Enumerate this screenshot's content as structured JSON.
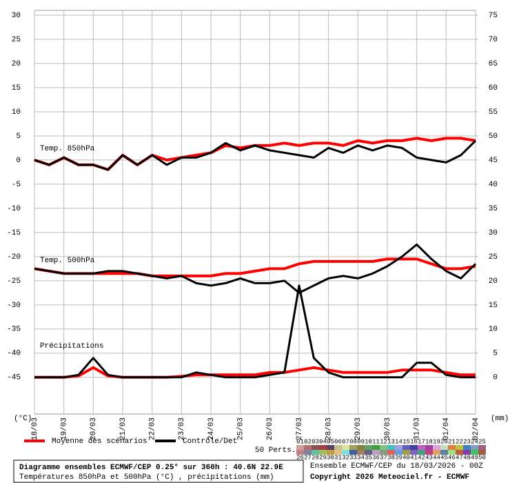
{
  "chart_data": {
    "type": "line",
    "categories": [
      "18/03",
      null,
      "19/03",
      null,
      "20/03",
      null,
      "21/03",
      null,
      "22/03",
      null,
      "23/03",
      null,
      "24/03",
      null,
      "25/03",
      null,
      "26/03",
      null,
      "27/03",
      null,
      "28/03",
      null,
      "29/03",
      null,
      "30/03",
      null,
      "31/03",
      null,
      "01/04",
      null,
      "02/04"
    ],
    "ylim": [
      -52.6,
      31
    ],
    "yticks": [
      30,
      25,
      20,
      15,
      10,
      5,
      0,
      -5,
      -10,
      -15,
      -20,
      -25,
      -30,
      -35,
      -40,
      -45
    ],
    "y2lim": [
      -7.6,
      76
    ],
    "y2ticks": [
      75,
      70,
      65,
      60,
      55,
      50,
      45,
      40,
      35,
      30,
      25,
      20,
      15,
      10,
      5,
      0
    ],
    "ylabel": "(°C)",
    "y2label": "(mm)",
    "grid": true,
    "legend": {
      "mean": {
        "name": "Moyenne des scénarios",
        "color": "#ff0000"
      },
      "control": {
        "name": "Contrôle/Det",
        "color": "#000000"
      }
    },
    "panels": [
      {
        "label": "Temp. 850hPa",
        "mean": [
          0,
          -1,
          0.5,
          -1,
          -1,
          -2,
          1,
          -1,
          1,
          0,
          0.5,
          1,
          1.5,
          3,
          2.5,
          3,
          3,
          3.5,
          3,
          3.5,
          3.5,
          3,
          4,
          3.5,
          4,
          4,
          4.5,
          4,
          4.5,
          4.5,
          4
        ],
        "control": [
          0,
          -1,
          0.5,
          -1,
          -1,
          -2,
          1,
          -1,
          1,
          -1,
          0.5,
          0.5,
          1.5,
          3.5,
          2,
          3,
          2,
          1.5,
          1,
          0.5,
          2.5,
          1.5,
          3,
          2,
          3,
          2.5,
          0.5,
          0,
          -0.5,
          1,
          4
        ]
      },
      {
        "label": "Temp. 500hPa",
        "mean": [
          -22.5,
          -23,
          -23.5,
          -23.5,
          -23.5,
          -23.5,
          -23.5,
          -23.5,
          -24,
          -24,
          -24,
          -24,
          -24,
          -23.5,
          -23.5,
          -23,
          -22.5,
          -22.5,
          -21.5,
          -21,
          -21,
          -21,
          -21,
          -21,
          -20.5,
          -20.5,
          -20.5,
          -21.5,
          -22.5,
          -22.5,
          -22
        ],
        "control": [
          -22.5,
          -23,
          -23.5,
          -23.5,
          -23.5,
          -23,
          -23,
          -23.5,
          -24,
          -24.5,
          -24,
          -25.5,
          -26,
          -25.5,
          -24.5,
          -25.5,
          -25.5,
          -25,
          -27.5,
          -26,
          -24.5,
          -24,
          -24.5,
          -23.5,
          -22,
          -20,
          -17.5,
          -20.5,
          -23,
          -24.5,
          -21.5
        ]
      },
      {
        "label": "Précipitations",
        "axis": "y2",
        "mean": [
          0,
          0,
          0,
          0.3,
          2,
          0.3,
          0,
          0,
          0,
          0,
          0.2,
          0.5,
          0.5,
          0.5,
          0.5,
          0.5,
          1,
          1,
          1.5,
          2,
          1.5,
          1,
          1,
          1,
          1,
          1.5,
          1.5,
          1.5,
          1,
          0.5,
          0.5
        ],
        "control": [
          0,
          0,
          0,
          0.5,
          4,
          0.5,
          0,
          0,
          0,
          0,
          0,
          1,
          0.5,
          0,
          0,
          0,
          0.5,
          1,
          19,
          4,
          1,
          0,
          0,
          0,
          0,
          0,
          3,
          3,
          0.5,
          0,
          0
        ]
      }
    ],
    "perturbations": {
      "label": "50 Perts.",
      "names": [
        "01",
        "02",
        "03",
        "04",
        "05",
        "06",
        "07",
        "08",
        "09",
        "10",
        "11",
        "12",
        "13",
        "14",
        "15",
        "16",
        "17",
        "18",
        "19",
        "20",
        "21",
        "22",
        "23",
        "24",
        "25",
        "26",
        "27",
        "28",
        "29",
        "30",
        "31",
        "32",
        "33",
        "34",
        "35",
        "36",
        "37",
        "38",
        "39",
        "40",
        "41",
        "42",
        "43",
        "44",
        "45",
        "46",
        "47",
        "48",
        "49",
        "50"
      ],
      "colors": [
        "#d0a0a0",
        "#b07070",
        "#905050",
        "#a04040",
        "#604060",
        "#c0c090",
        "#e0e0a0",
        "#a0a060",
        "#808040",
        "#60a060",
        "#40a040",
        "#80c080",
        "#40c0c0",
        "#a0a0e0",
        "#6060c0",
        "#4040a0",
        "#c060c0",
        "#a040a0",
        "#e0a0e0",
        "#c0e0c0",
        "#e08040",
        "#c0c040",
        "#4080c0",
        "#80a0c0",
        "#a06080",
        "#c08080",
        "#8080a0",
        "#60c0a0",
        "#a0c060",
        "#c0a040",
        "#e0c080",
        "#80e0e0",
        "#4060a0",
        "#a08060",
        "#606080",
        "#c0a0c0",
        "#80a080",
        "#e06060",
        "#60a0e0",
        "#a0a040",
        "#8060c0",
        "#40a080",
        "#c04080",
        "#e0a060",
        "#6080a0",
        "#a0e080",
        "#c06040",
        "#8040a0",
        "#40c060",
        "#a06040"
      ]
    },
    "footer": {
      "title": "Diagramme ensembles ECMWF/CEP 0.25° sur 360h : 40.6N 22.9E",
      "subtitle": "Températures 850hPa et 500hPa (°C) , précipitations (mm)",
      "run": "Ensemble ECMWF/CEP du 18/03/2026 - 00Z",
      "copyright": "Copyright 2026 Meteociel.fr - ECMWF"
    }
  }
}
